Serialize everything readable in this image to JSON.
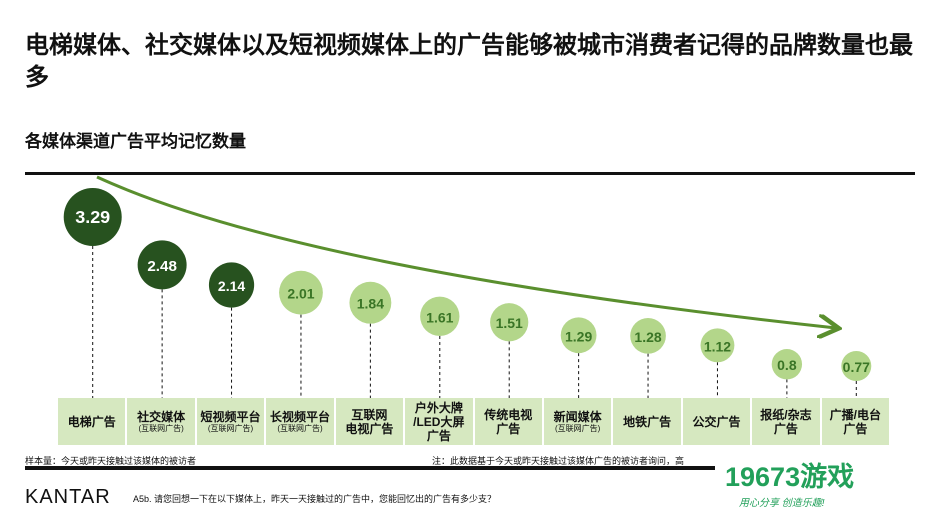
{
  "title": "电梯媒体、社交媒体以及短视频媒体上的广告能够被城市消费者记得的品牌数量也最多",
  "subtitle": "各媒体渠道广告平均记忆数量",
  "chart_data": {
    "type": "bubble",
    "title": "各媒体渠道广告平均记忆数量",
    "categories": [
      {
        "label": "电梯广告",
        "sub": ""
      },
      {
        "label": "社交媒体",
        "sub": "(互联网广告)"
      },
      {
        "label": "短视频平台",
        "sub": "(互联网广告)"
      },
      {
        "label": "长视频平台",
        "sub": "(互联网广告)"
      },
      {
        "label": "互联网\n电视广告",
        "sub": ""
      },
      {
        "label": "户外大牌\n/LED大屏\n广告",
        "sub": ""
      },
      {
        "label": "传统电视\n广告",
        "sub": ""
      },
      {
        "label": "新闻媒体",
        "sub": "(互联网广告)"
      },
      {
        "label": "地铁广告",
        "sub": ""
      },
      {
        "label": "公交广告",
        "sub": ""
      },
      {
        "label": "报纸/杂志\n广告",
        "sub": ""
      },
      {
        "label": "广播/电台\n广告",
        "sub": ""
      }
    ],
    "values": [
      3.29,
      2.48,
      2.14,
      2.01,
      1.84,
      1.61,
      1.51,
      1.29,
      1.28,
      1.12,
      0.8,
      0.77
    ],
    "highlighted_count": 3,
    "colors": {
      "highlight": "#27521f",
      "normal": "#b3d68a",
      "normal_text": "#3a7526",
      "highlight_text": "#ffffff",
      "trend": "#5a8f2e",
      "label_bg": "#d6e8c0"
    }
  },
  "notes": {
    "sample": "样本量：今天或昨天接触过该媒体的被访者",
    "note": "注：此数据基于今天或昨天接触过该媒体广告的被访者询问，高",
    "question": "A5b. 请您回想一下在以下媒体上，昨天一天接触过的广告中，您能回忆出的广告有多少支？"
  },
  "brand": "KANTAR",
  "watermark": {
    "name": "19673游戏",
    "slogan": "用心分享  创造乐趣!"
  }
}
